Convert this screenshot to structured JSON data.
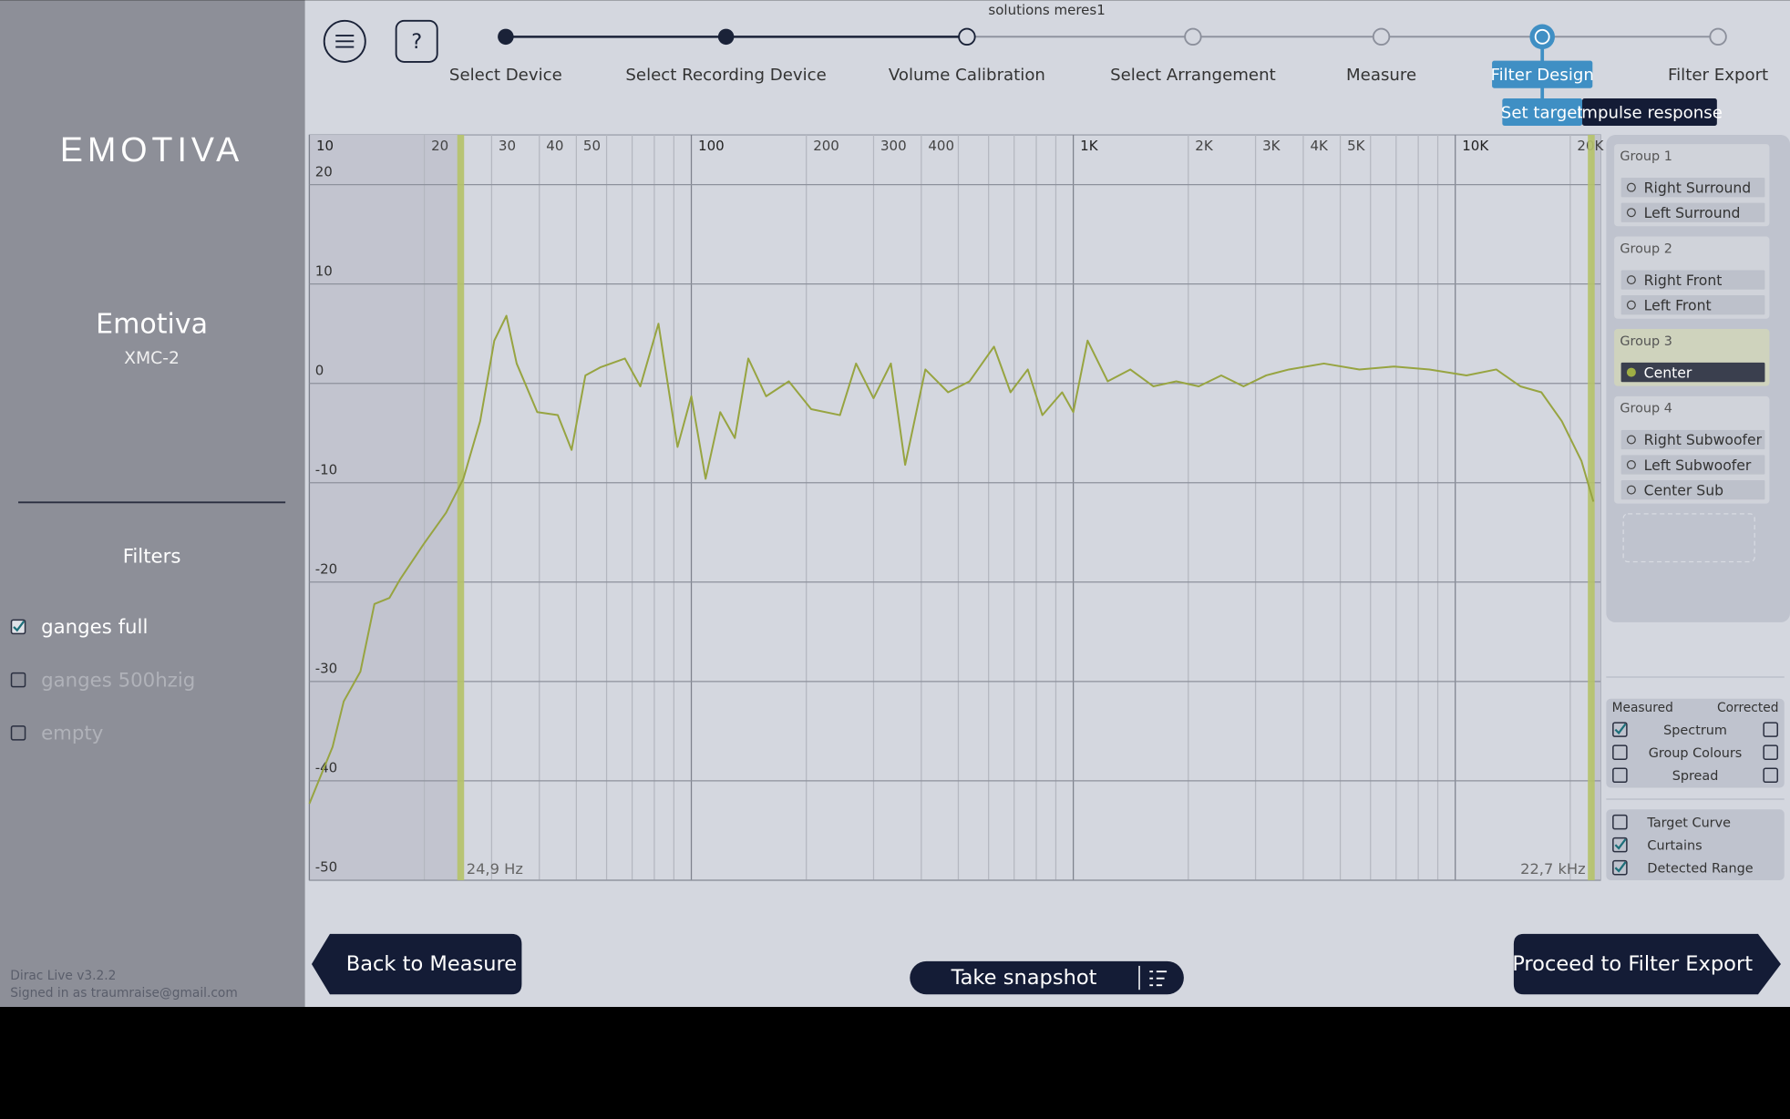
{
  "header": {
    "title": "solutions meres1"
  },
  "steps": [
    {
      "label": "Select Device",
      "status": "complete"
    },
    {
      "label": "Select Recording Device",
      "status": "complete"
    },
    {
      "label": "Volume Calibration",
      "status": "visited"
    },
    {
      "label": "Select Arrangement",
      "status": "pending"
    },
    {
      "label": "Measure",
      "status": "pending"
    },
    {
      "label": "Filter Design",
      "status": "current"
    },
    {
      "label": "Filter Export",
      "status": "pending"
    }
  ],
  "tabs": [
    {
      "label": "Set target",
      "active": true
    },
    {
      "label": "Impulse response",
      "active": false
    }
  ],
  "sidebar": {
    "logo": "EMOTIVA",
    "device": "Emotiva",
    "model": "XMC-2",
    "filters_title": "Filters",
    "filters": [
      {
        "name": "ganges full",
        "checked": true
      },
      {
        "name": "ganges 500hzig",
        "checked": false
      },
      {
        "name": "empty",
        "checked": false
      }
    ],
    "version": "Dirac Live v3.2.2",
    "signed_in": "Signed in as traumraise@gmail.com"
  },
  "chart_data": {
    "type": "line",
    "xscale": "log",
    "xlim": [
      10,
      24000
    ],
    "ylim": [
      -50,
      25
    ],
    "xticks": [
      10,
      20,
      30,
      40,
      50,
      100,
      200,
      300,
      400,
      {
        "value": 1000,
        "label": "1K"
      },
      {
        "value": 2000,
        "label": "2K"
      },
      {
        "value": 3000,
        "label": "3K"
      },
      {
        "value": 4000,
        "label": "4K"
      },
      {
        "value": 5000,
        "label": "5K"
      },
      {
        "value": 10000,
        "label": "10K"
      },
      {
        "value": 20000,
        "label": "20K"
      }
    ],
    "xminorticks": [
      60,
      70,
      80,
      90,
      500,
      600,
      700,
      800,
      900,
      6000,
      7000,
      8000,
      9000
    ],
    "yticks": [
      20,
      10,
      0,
      -10,
      -20,
      -30,
      -40,
      -50
    ],
    "grid": true,
    "curtains": [
      {
        "value": 24.9,
        "label": "24,9 Hz"
      },
      {
        "value": 22700,
        "label": "22,7 kHz"
      }
    ],
    "x": [
      10,
      11.5,
      12.3,
      13.6,
      14.8,
      16.2,
      17.3,
      19.9,
      22.8,
      25.3,
      28,
      30.5,
      32.8,
      34.9,
      39.5,
      44.7,
      48.6,
      52.8,
      57.7,
      67,
      73.5,
      82,
      92,
      100,
      109,
      119,
      130,
      141,
      157,
      180,
      206,
      245,
      270,
      300,
      333,
      363,
      410,
      470,
      535,
      620,
      685,
      760,
      830,
      935,
      1000,
      1090,
      1230,
      1410,
      1620,
      1860,
      2130,
      2440,
      2790,
      3200,
      3670,
      4530,
      5610,
      6920,
      8560,
      10700,
      12800,
      14800,
      16800,
      19000,
      21400,
      23000
    ],
    "series": [
      {
        "color": "#97a441",
        "values": [
          -42.3,
          -36.6,
          -32,
          -29,
          -22.2,
          -21.6,
          -19.7,
          -16.2,
          -13,
          -9.6,
          -3.8,
          4.3,
          6.8,
          2,
          -2.9,
          -3.2,
          -6.7,
          0.8,
          1.6,
          2.5,
          -0.3,
          6,
          -6.4,
          -1.3,
          -9.6,
          -2.9,
          -5.5,
          2.5,
          -1.3,
          0.2,
          -2.6,
          -3.2,
          2,
          -1.5,
          2,
          -8.2,
          1.4,
          -0.9,
          0.2,
          3.7,
          -0.9,
          1.4,
          -3.2,
          -0.9,
          -2.9,
          4.3,
          0.2,
          1.4,
          -0.3,
          0.2,
          -0.3,
          0.8,
          -0.3,
          0.8,
          1.4,
          2,
          1.4,
          1.7,
          1.4,
          0.8,
          1.4,
          -0.3,
          -0.9,
          -3.8,
          -7.8,
          -11.9
        ]
      }
    ]
  },
  "groups": [
    {
      "name": "Group 1",
      "channels": [
        {
          "name": "Right Surround",
          "selected": false
        },
        {
          "name": "Left Surround",
          "selected": false
        }
      ]
    },
    {
      "name": "Group 2",
      "channels": [
        {
          "name": "Right Front",
          "selected": false
        },
        {
          "name": "Left Front",
          "selected": false
        }
      ]
    },
    {
      "name": "Group 3",
      "channels": [
        {
          "name": "Center",
          "selected": true
        }
      ]
    },
    {
      "name": "Group 4",
      "channels": [
        {
          "name": "Right Subwoofer",
          "selected": false
        },
        {
          "name": "Left Subwoofer",
          "selected": false
        },
        {
          "name": "Center Sub",
          "selected": false
        }
      ]
    }
  ],
  "display": {
    "measured_label": "Measured",
    "corrected_label": "Corrected",
    "rows": [
      {
        "label": "Spectrum",
        "measured": true,
        "corrected": false
      },
      {
        "label": "Group Colours",
        "measured": false,
        "corrected": false
      },
      {
        "label": "Spread",
        "measured": false,
        "corrected": false
      }
    ],
    "extras": [
      {
        "label": "Target Curve",
        "checked": false
      },
      {
        "label": "Curtains",
        "checked": true
      },
      {
        "label": "Detected Range",
        "checked": true
      }
    ]
  },
  "buttons": {
    "back": "Back to Measure",
    "snapshot": "Take snapshot",
    "proceed": "Proceed to Filter Export"
  }
}
